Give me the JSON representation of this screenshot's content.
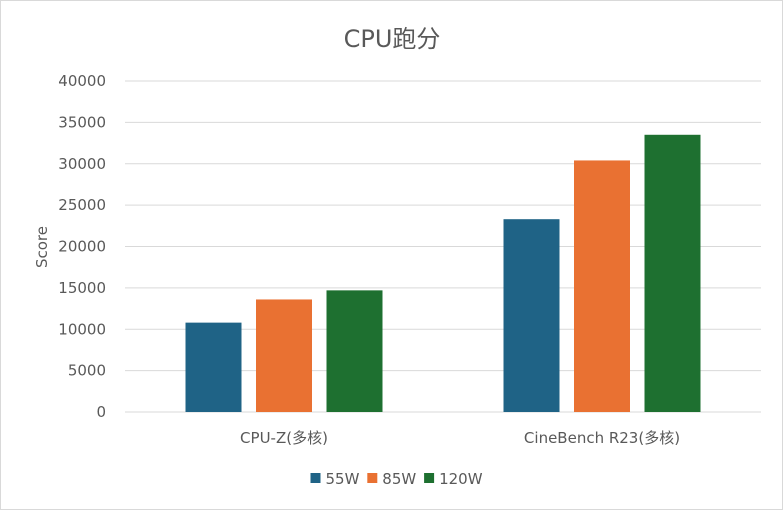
{
  "chart_data": {
    "type": "bar",
    "title": "CPU跑分",
    "xlabel": "",
    "ylabel": "Score",
    "categories": [
      "CPU-Z(多核)",
      "CineBench R23(多核)"
    ],
    "series": [
      {
        "name": "55W",
        "color": "#1f6386",
        "values": [
          10800,
          23300
        ]
      },
      {
        "name": "85W",
        "color": "#e97132",
        "values": [
          13600,
          30400
        ]
      },
      {
        "name": "120W",
        "color": "#1e7030",
        "values": [
          14700,
          33500
        ]
      }
    ],
    "ylim": [
      0,
      40000
    ],
    "yticks": [
      0,
      5000,
      10000,
      15000,
      20000,
      25000,
      30000,
      35000,
      40000
    ],
    "grid": true,
    "legend_position": "bottom"
  }
}
